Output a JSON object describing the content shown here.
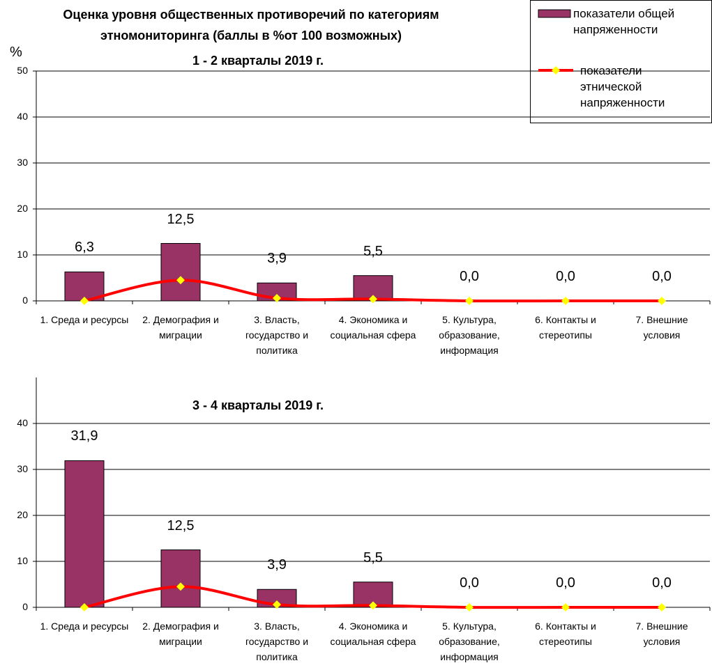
{
  "chart_data": [
    {
      "type": "bar_line",
      "title": "Оценка уровня общественных противоречий по категориям этномониторинга (баллы в %от 100 возможных)",
      "subtitle": "1 - 2 кварталы 2019 г.",
      "y_label": "%",
      "categories": [
        "1. Среда и ресурсы",
        "2. Демография и миграции",
        "3. Власть, государство и политика",
        "4. Экономика и социальная сфера",
        "5. Культура, образование, информация",
        "6. Контакты и стереотипы",
        "7. Внешние условия"
      ],
      "series": [
        {
          "name": "показатели общей напряженности",
          "color": "#993366",
          "values": [
            6.3,
            12.5,
            3.9,
            5.5,
            0,
            0,
            0
          ],
          "value_labels": [
            "6,3",
            "12,5",
            "3,9",
            "5,5",
            "0,0",
            "0,0",
            "0,0"
          ]
        },
        {
          "name": "показатели этнической напряженности",
          "color": "#ff0000",
          "marker_color": "#ffff00",
          "values": [
            0,
            4.5,
            0.6,
            0.4,
            0,
            0,
            0
          ]
        }
      ],
      "ylim": [
        0,
        50
      ],
      "yticks": [
        0,
        10,
        20,
        30,
        40,
        50
      ],
      "grid": true
    },
    {
      "type": "bar_line",
      "subtitle": "3 - 4 кварталы 2019 г.",
      "categories": [
        "1. Среда и ресурсы",
        "2. Демография и миграции",
        "3. Власть, государство и политика",
        "4. Экономика и социальная сфера",
        "5. Культура, образование, информация",
        "6. Контакты и стереотипы",
        "7. Внешние условия"
      ],
      "series": [
        {
          "color": "#993366",
          "values": [
            31.9,
            12.5,
            3.9,
            5.5,
            0,
            0,
            0
          ],
          "value_labels": [
            "31,9",
            "12,5",
            "3,9",
            "5,5",
            "0,0",
            "0,0",
            "0,0"
          ]
        },
        {
          "color": "#ff0000",
          "marker_color": "#ffff00",
          "values": [
            0,
            4.5,
            0.6,
            0.4,
            0,
            0,
            0
          ]
        }
      ],
      "ylim": [
        0,
        50
      ],
      "yticks": [
        0,
        10,
        20,
        30,
        40
      ],
      "grid": true
    }
  ]
}
